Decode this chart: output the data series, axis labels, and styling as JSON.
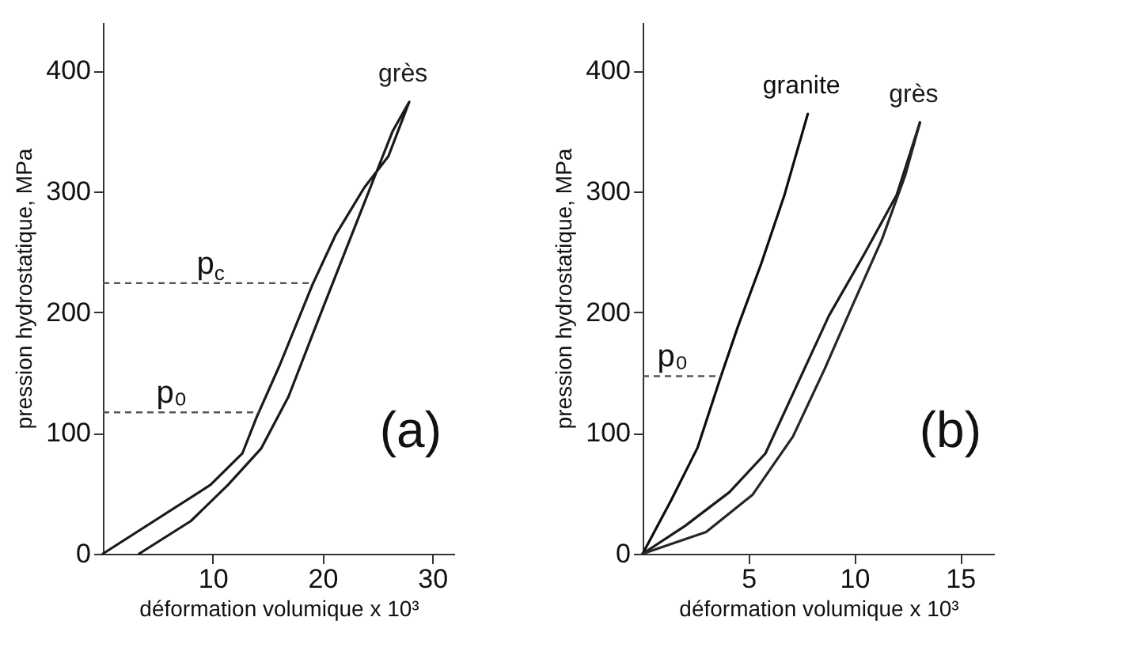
{
  "chart_data": [
    {
      "type": "line",
      "xlabel": "déformation volumique  x 10³",
      "ylabel": "pression hydrostatique,  MPa",
      "xlim": [
        0,
        32
      ],
      "ylim": [
        0,
        440
      ],
      "xticks": [
        10,
        20,
        30
      ],
      "yticks": [
        0,
        100,
        200,
        300,
        400
      ],
      "grid": false,
      "legend": false,
      "line_style": "solid",
      "annotations": [
        "(a)"
      ],
      "ref_lines": [
        {
          "axis": "y",
          "value": 224,
          "label": "p$_{c}$",
          "line_style": "dashed"
        },
        {
          "axis": "y",
          "value": 117,
          "label": "p₀",
          "line_style": "dashed"
        }
      ],
      "series": [
        {
          "name": "grès",
          "color": "#1a1a1a",
          "x": [
            0,
            9.8,
            12.7,
            14,
            16.1,
            19.1,
            21.2,
            23.8,
            26,
            27.9,
            26.4,
            24.7,
            22.1,
            19.5,
            16.9,
            14.4,
            11.4,
            8,
            3.3
          ],
          "values": [
            0,
            57,
            83,
            113,
            156,
            223,
            264,
            303,
            329,
            374,
            350,
            311,
            251,
            191,
            130,
            87,
            57,
            27,
            0
          ]
        }
      ]
    },
    {
      "type": "line",
      "xlabel": "déformation volumique  x 10³",
      "ylabel": "pression hydrostatique,  MPa",
      "xlim": [
        0,
        16.6
      ],
      "ylim": [
        0,
        440
      ],
      "xticks": [
        5,
        10,
        15
      ],
      "yticks": [
        0,
        100,
        200,
        300,
        400
      ],
      "grid": false,
      "legend": false,
      "line_style": "solid",
      "annotations": [
        "(b)"
      ],
      "ref_lines": [
        {
          "axis": "y",
          "value": 147,
          "label": "p₀",
          "line_style": "dashed"
        }
      ],
      "series": [
        {
          "name": "granite",
          "color": "#0d0d0d",
          "x": [
            0,
            1.34,
            2.6,
            3.7,
            4.5,
            5.6,
            6.7,
            7.8
          ],
          "values": [
            0,
            44,
            88,
            147,
            188,
            240,
            297,
            364
          ]
        },
        {
          "name": "grès",
          "color": "#1a1a1a",
          "x": [
            0,
            2,
            4.1,
            5.8,
            7.3,
            8.8,
            10.5,
            12,
            13.1
          ],
          "values": [
            0,
            23,
            51,
            83,
            140,
            197,
            249,
            297,
            357
          ]
        },
        {
          "color": "#262626",
          "x": [
            13.1,
            12.4,
            11.3,
            9.9,
            8.6,
            7.1,
            5.2,
            3,
            0
          ],
          "values": [
            357,
            313,
            260,
            205,
            153,
            97,
            49,
            18,
            0
          ]
        }
      ]
    }
  ]
}
